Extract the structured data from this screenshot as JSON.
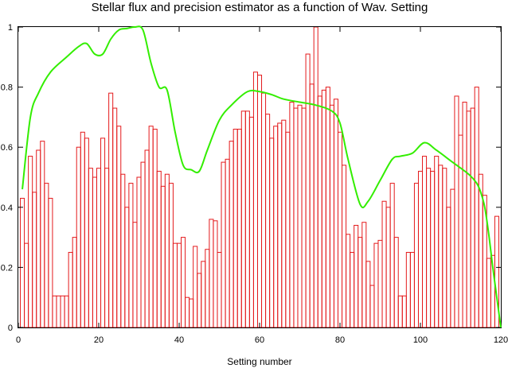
{
  "chart_data": {
    "type": "bar",
    "title": "Stellar flux and precision estimator as a function of Wav. Setting",
    "xlabel": "Setting number",
    "ylabel": "",
    "xlim": [
      0,
      120
    ],
    "ylim": [
      0,
      1
    ],
    "grid": false,
    "x_ticks": [
      0,
      20,
      40,
      60,
      80,
      100,
      120
    ],
    "y_ticks": [
      0,
      0.2,
      0.4,
      0.6,
      0.8,
      1
    ],
    "x_tick_labels": [
      "0",
      "20",
      "40",
      "60",
      "80",
      "100",
      "120"
    ],
    "y_tick_labels": [
      "0",
      "0.2",
      "0.4",
      "0.6",
      "0.8",
      "1"
    ],
    "series": [
      {
        "kind": "bar",
        "color": "#e41a1c",
        "x": [
          1,
          2,
          3,
          4,
          5,
          6,
          7,
          8,
          9,
          10,
          11,
          12,
          13,
          14,
          15,
          16,
          17,
          18,
          19,
          20,
          21,
          22,
          23,
          24,
          25,
          26,
          27,
          28,
          29,
          30,
          31,
          32,
          33,
          34,
          35,
          36,
          37,
          38,
          39,
          40,
          41,
          42,
          43,
          44,
          45,
          46,
          47,
          48,
          49,
          50,
          51,
          52,
          53,
          54,
          55,
          56,
          57,
          58,
          59,
          60,
          61,
          62,
          63,
          64,
          65,
          66,
          67,
          68,
          69,
          70,
          71,
          72,
          73,
          74,
          75,
          76,
          77,
          78,
          79,
          80,
          81,
          82,
          83,
          84,
          85,
          86,
          87,
          88,
          89,
          90,
          91,
          92,
          93,
          94,
          95,
          96,
          97,
          98,
          99,
          100,
          101,
          102,
          103,
          104,
          105,
          106,
          107,
          108,
          109,
          110,
          111,
          112,
          113,
          114,
          115,
          116,
          117,
          118,
          119
        ],
        "values": [
          0.43,
          0.28,
          0.57,
          0.45,
          0.59,
          0.62,
          0.48,
          0.43,
          0.105,
          0.105,
          0.105,
          0.105,
          0.25,
          0.3,
          0.6,
          0.65,
          0.63,
          0.53,
          0.5,
          0.53,
          0.63,
          0.53,
          0.78,
          0.73,
          0.67,
          0.51,
          0.4,
          0.48,
          0.35,
          0.5,
          0.55,
          0.59,
          0.67,
          0.66,
          0.52,
          0.47,
          0.51,
          0.48,
          0.28,
          0.28,
          0.3,
          0.1,
          0.095,
          0.27,
          0.18,
          0.22,
          0.26,
          0.36,
          0.355,
          0.25,
          0.55,
          0.56,
          0.62,
          0.66,
          0.66,
          0.72,
          0.72,
          0.7,
          0.85,
          0.84,
          0.78,
          0.71,
          0.63,
          0.67,
          0.68,
          0.69,
          0.65,
          0.75,
          0.73,
          0.74,
          0.73,
          0.91,
          0.81,
          1.0,
          0.77,
          0.79,
          0.8,
          0.74,
          0.76,
          0.65,
          0.54,
          0.31,
          0.25,
          0.34,
          0.3,
          0.35,
          0.22,
          0.14,
          0.28,
          0.29,
          0.42,
          0.4,
          0.48,
          0.3,
          0.105,
          0.105,
          0.25,
          0.25,
          0.48,
          0.52,
          0.57,
          0.53,
          0.52,
          0.57,
          0.54,
          0.53,
          0.4,
          0.46,
          0.77,
          0.64,
          0.75,
          0.72,
          0.73,
          0.8,
          0.51,
          0.44,
          0.23,
          0.24,
          0.37
        ]
      },
      {
        "kind": "line",
        "color": "#33ee00",
        "x": [
          1,
          3,
          5,
          8,
          12,
          15,
          17,
          19,
          21,
          23,
          25,
          27,
          29,
          31,
          33,
          35,
          37,
          39,
          41,
          43,
          45,
          47,
          50,
          53,
          57,
          60,
          63,
          66,
          70,
          74,
          78,
          80,
          82,
          85,
          87,
          90,
          93,
          95,
          98,
          101,
          104,
          108,
          112,
          114,
          115,
          116,
          117,
          118,
          119,
          120
        ],
        "values": [
          0.46,
          0.7,
          0.78,
          0.85,
          0.9,
          0.935,
          0.945,
          0.91,
          0.91,
          0.96,
          0.99,
          0.995,
          1.0,
          0.99,
          0.88,
          0.8,
          0.79,
          0.65,
          0.54,
          0.525,
          0.52,
          0.59,
          0.69,
          0.74,
          0.785,
          0.785,
          0.775,
          0.76,
          0.75,
          0.74,
          0.72,
          0.68,
          0.56,
          0.41,
          0.42,
          0.49,
          0.56,
          0.57,
          0.58,
          0.615,
          0.59,
          0.55,
          0.51,
          0.48,
          0.45,
          0.4,
          0.31,
          0.2,
          0.1,
          0.0
        ]
      }
    ]
  }
}
